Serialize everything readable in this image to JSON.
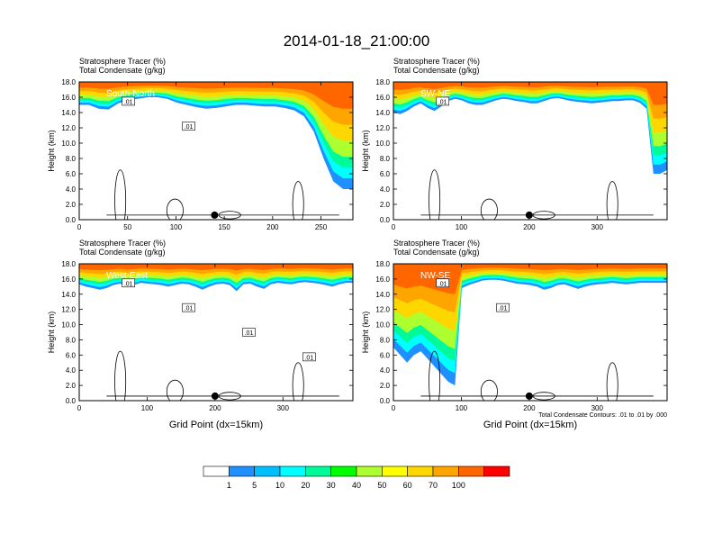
{
  "title": "2014-01-18_21:00:00",
  "colorbar": {
    "ticks": [
      "1",
      "5",
      "10",
      "20",
      "30",
      "40",
      "50",
      "60",
      "70",
      "100"
    ],
    "colors": [
      "#ffffff",
      "#1e90ff",
      "#00bfff",
      "#00ffff",
      "#00fa9a",
      "#00ff00",
      "#adff2f",
      "#ffff00",
      "#ffd700",
      "#ffa500",
      "#ff6600",
      "#ff0000"
    ]
  },
  "chart_data": [
    {
      "type": "heatmap",
      "panel": "top-left",
      "title_line1": "Stratosphere Tracer   (%)",
      "title_line2": "Total Condensate   (g/kg)",
      "transect": "South-North",
      "ylabel": "Height (km)",
      "xlabel": "",
      "yticks": [
        "0.0",
        "2.0",
        "4.0",
        "6.0",
        "8.0",
        "10.0",
        "12.0",
        "14.0",
        "16.0",
        "18.0"
      ],
      "xticks": [
        "0",
        "50",
        "100",
        "150",
        "200",
        "250"
      ],
      "xlim": [
        0,
        283
      ],
      "ylim": [
        0,
        18
      ],
      "marker_x": 140,
      "contour_labels": [
        ".01",
        ".01"
      ],
      "tracer_base_km": [
        15.0,
        15.0,
        14.5,
        14.4,
        15.2,
        15.6,
        15.8,
        16.0,
        16.0,
        15.8,
        15.3,
        15.0,
        14.7,
        14.5,
        14.6,
        14.8,
        15.0,
        15.0,
        14.9,
        14.8,
        14.8,
        14.6,
        14.3,
        13.5,
        11.5,
        8.0,
        5.0,
        4.0,
        4.0
      ]
    },
    {
      "type": "heatmap",
      "panel": "top-right",
      "title_line1": "Stratosphere Tracer   (%)",
      "title_line2": "Total Condensate   (g/kg)",
      "transect": "SW-NE",
      "ylabel": "Height (km)",
      "xlabel": "",
      "yticks": [
        "0.0",
        "2.0",
        "4.0",
        "6.0",
        "8.0",
        "10.0",
        "12.0",
        "14.0",
        "16.0",
        "18.0"
      ],
      "xticks": [
        "0",
        "100",
        "200",
        "300"
      ],
      "xlim": [
        0,
        403
      ],
      "ylim": [
        0,
        18
      ],
      "marker_x": 200,
      "contour_labels": [
        ".01"
      ],
      "tracer_base_km": [
        14.0,
        13.8,
        14.2,
        14.8,
        15.2,
        14.6,
        14.2,
        14.8,
        15.5,
        15.8,
        15.6,
        15.2,
        15.0,
        15.0,
        15.3,
        15.6,
        15.8,
        15.7,
        15.5,
        15.4,
        15.2,
        15.2,
        15.5,
        15.8,
        15.9,
        15.7,
        15.5,
        15.4,
        15.3,
        15.2,
        15.3,
        15.4,
        15.5,
        15.5,
        15.6,
        15.6,
        15.3,
        14.5,
        6.0,
        6.0,
        6.5
      ]
    },
    {
      "type": "heatmap",
      "panel": "bottom-left",
      "title_line1": "Stratosphere Tracer   (%)",
      "title_line2": "Total Condensate   (g/kg)",
      "transect": "West-East",
      "ylabel": "Height (km)",
      "xlabel": "Grid Point (dx=15km)",
      "yticks": [
        "0.0",
        "2.0",
        "4.0",
        "6.0",
        "8.0",
        "10.0",
        "12.0",
        "14.0",
        "16.0",
        "18.0"
      ],
      "xticks": [
        "0",
        "100",
        "200",
        "300"
      ],
      "xlim": [
        0,
        403
      ],
      "ylim": [
        0,
        18
      ],
      "marker_x": 200,
      "contour_labels": [
        ".01",
        ".01",
        ".01",
        ".01"
      ],
      "tracer_base_km": [
        15.3,
        15.0,
        14.8,
        14.6,
        14.8,
        15.2,
        15.4,
        15.0,
        15.2,
        15.5,
        15.4,
        15.3,
        15.2,
        15.0,
        15.2,
        15.4,
        15.3,
        15.0,
        14.6,
        15.0,
        15.3,
        15.4,
        15.2,
        14.4,
        15.3,
        15.4,
        15.0,
        14.7,
        15.3,
        15.5,
        15.4,
        15.3,
        15.5,
        15.6,
        15.5,
        15.4,
        15.2,
        15.0,
        15.3,
        15.5,
        15.5
      ]
    },
    {
      "type": "heatmap",
      "panel": "bottom-right",
      "title_line1": "Stratosphere Tracer   (%)",
      "title_line2": "Total Condensate   (g/kg)",
      "transect": "NW-SE",
      "ylabel": "Height (km)",
      "xlabel": "Grid Point (dx=15km)",
      "yticks": [
        "0.0",
        "2.0",
        "4.0",
        "6.0",
        "8.0",
        "10.0",
        "12.0",
        "14.0",
        "16.0",
        "18.0"
      ],
      "xticks": [
        "0",
        "100",
        "200",
        "300"
      ],
      "xlim": [
        0,
        403
      ],
      "ylim": [
        0,
        18
      ],
      "marker_x": 200,
      "contour_labels": [
        ".01",
        ".01"
      ],
      "tracer_base_km": [
        7.0,
        6.0,
        5.0,
        6.0,
        6.5,
        5.5,
        4.5,
        3.5,
        2.5,
        2.0,
        14.8,
        15.2,
        15.5,
        15.8,
        15.9,
        15.9,
        15.8,
        15.6,
        15.4,
        15.3,
        15.2,
        15.0,
        14.6,
        14.8,
        15.2,
        15.3,
        15.0,
        14.7,
        15.0,
        15.2,
        15.3,
        15.4,
        15.5,
        15.4,
        15.3,
        15.4,
        15.5,
        15.5,
        15.5,
        15.5,
        15.5
      ],
      "footnote": "Total Condensate Contours: .01 to .01 by .000"
    }
  ]
}
